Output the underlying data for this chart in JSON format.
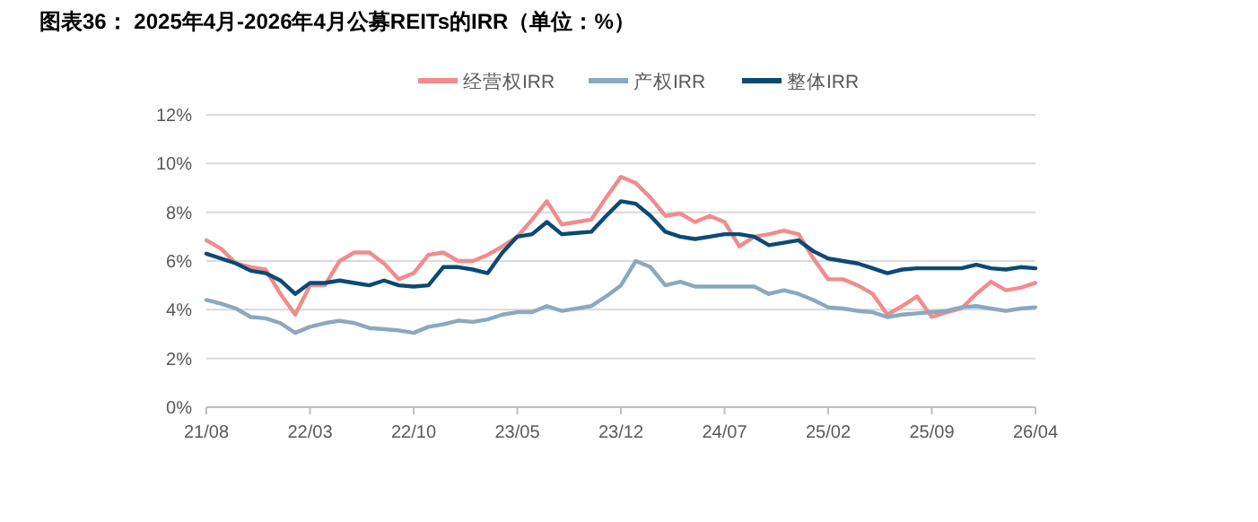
{
  "chart_data": {
    "type": "line",
    "title": "图表36：  2025年4月-2026年4月公募REITs的IRR（单位：%）",
    "x": [
      "2021-08",
      "2021-09",
      "2021-10",
      "2021-11",
      "2021-12",
      "2022-01",
      "2022-02",
      "2022-03",
      "2022-04",
      "2022-05",
      "2022-06",
      "2022-07",
      "2022-08",
      "2022-09",
      "2022-10",
      "2022-11",
      "2022-12",
      "2023-01",
      "2023-02",
      "2023-03",
      "2023-04",
      "2023-05",
      "2023-06",
      "2023-07",
      "2023-08",
      "2023-09",
      "2023-10",
      "2023-11",
      "2023-12",
      "2024-01",
      "2024-02",
      "2024-03",
      "2024-04",
      "2024-05",
      "2024-06",
      "2024-07",
      "2024-08",
      "2024-09",
      "2024-10",
      "2024-11",
      "2024-12",
      "2025-01",
      "2025-02",
      "2025-03",
      "2025-04",
      "2025-05",
      "2025-06",
      "2025-07",
      "2025-08",
      "2025-09",
      "2025-10",
      "2025-11",
      "2025-12",
      "2026-01",
      "2026-02",
      "2026-03",
      "2026-04"
    ],
    "series": [
      {
        "name": "经营权IRR",
        "color": "#f28b8c",
        "values": [
          6.85,
          6.5,
          5.9,
          5.75,
          5.65,
          4.65,
          3.8,
          5.0,
          5.0,
          6.0,
          6.35,
          6.35,
          5.9,
          5.25,
          5.5,
          6.25,
          6.35,
          6.0,
          6.0,
          6.25,
          6.6,
          7.0,
          7.7,
          8.45,
          7.5,
          7.6,
          7.7,
          8.6,
          9.45,
          9.2,
          8.6,
          7.85,
          7.95,
          7.6,
          7.85,
          7.6,
          6.6,
          7.0,
          7.1,
          7.25,
          7.1,
          6.1,
          5.25,
          5.25,
          5.0,
          4.65,
          3.8,
          4.15,
          4.55,
          3.7,
          3.9,
          4.05,
          4.65,
          5.15,
          4.8,
          4.9,
          5.1
        ]
      },
      {
        "name": "产权IRR",
        "color": "#8aa9bf",
        "values": [
          4.4,
          4.25,
          4.05,
          3.7,
          3.65,
          3.45,
          3.05,
          3.3,
          3.45,
          3.55,
          3.45,
          3.25,
          3.2,
          3.15,
          3.05,
          3.3,
          3.4,
          3.55,
          3.5,
          3.6,
          3.8,
          3.9,
          3.9,
          4.15,
          3.95,
          4.05,
          4.15,
          4.55,
          5.0,
          6.0,
          5.75,
          5.0,
          5.15,
          4.95,
          4.95,
          4.95,
          4.95,
          4.95,
          4.65,
          4.8,
          4.65,
          4.4,
          4.1,
          4.05,
          3.95,
          3.9,
          3.7,
          3.8,
          3.85,
          3.9,
          3.95,
          4.1,
          4.15,
          4.05,
          3.95,
          4.05,
          4.1
        ]
      },
      {
        "name": "整体IRR",
        "color": "#0c4a75",
        "values": [
          6.3,
          6.1,
          5.9,
          5.6,
          5.5,
          5.2,
          4.65,
          5.1,
          5.1,
          5.2,
          5.1,
          5.0,
          5.2,
          5.0,
          4.95,
          5.0,
          5.75,
          5.75,
          5.65,
          5.5,
          6.35,
          7.0,
          7.1,
          7.6,
          7.1,
          7.15,
          7.2,
          7.85,
          8.45,
          8.35,
          7.85,
          7.2,
          7.0,
          6.9,
          7.0,
          7.1,
          7.1,
          7.0,
          6.65,
          6.75,
          6.85,
          6.4,
          6.1,
          6.0,
          5.9,
          5.7,
          5.5,
          5.65,
          5.7,
          5.7,
          5.7,
          5.7,
          5.85,
          5.7,
          5.65,
          5.75,
          5.7
        ]
      }
    ],
    "xlim": [
      "2021-08",
      "2026-04"
    ],
    "xticks": [
      {
        "value": "2021-08",
        "label": "21/08"
      },
      {
        "value": "2022-03",
        "label": "22/03"
      },
      {
        "value": "2022-10",
        "label": "22/10"
      },
      {
        "value": "2023-05",
        "label": "23/05"
      },
      {
        "value": "2023-12",
        "label": "23/12"
      },
      {
        "value": "2024-07",
        "label": "24/07"
      },
      {
        "value": "2025-02",
        "label": "25/02"
      },
      {
        "value": "2025-09",
        "label": "25/09"
      },
      {
        "value": "2026-04",
        "label": "26/04"
      }
    ],
    "ylim": [
      0,
      12
    ],
    "yticks": [
      {
        "value": 0,
        "label": "0%"
      },
      {
        "value": 2,
        "label": "2%"
      },
      {
        "value": 4,
        "label": "4%"
      },
      {
        "value": 6,
        "label": "6%"
      },
      {
        "value": 8,
        "label": "8%"
      },
      {
        "value": 10,
        "label": "10%"
      },
      {
        "value": 12,
        "label": "12%"
      }
    ],
    "grid": "y",
    "legend": "top",
    "marker": "none",
    "line_style": "solid"
  }
}
